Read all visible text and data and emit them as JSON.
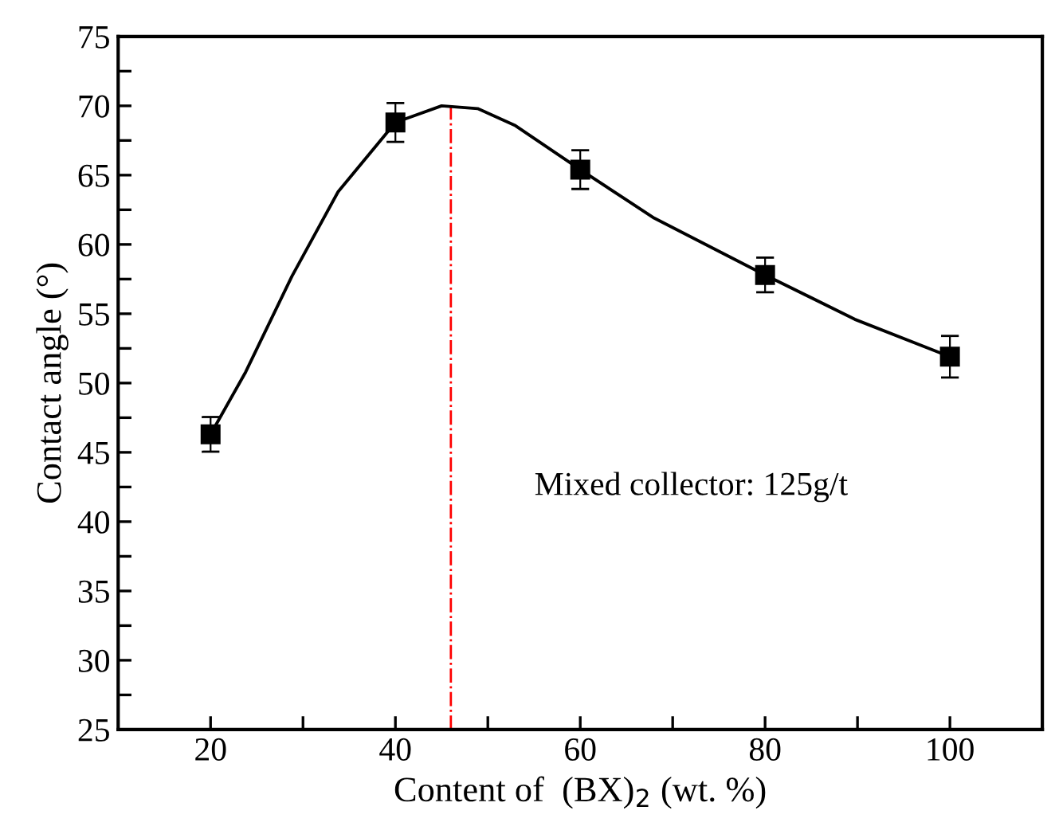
{
  "chart_data": {
    "type": "line",
    "xlabel": "Content of  (BX)$_{2}$ (wt. %)",
    "ylabel": "Contact angle (°)",
    "series": [
      {
        "color": "#000000",
        "marker": "none",
        "line_style": "solid",
        "x": [
          20,
          23.8,
          28.8,
          33.8,
          40,
          45.0,
          48.9,
          52.9,
          60,
          68.0,
          80,
          89.7,
          100
        ],
        "values": [
          46.3,
          50.8,
          57.7,
          63.8,
          68.8,
          70.0,
          69.8,
          68.6,
          65.4,
          61.9,
          57.8,
          54.6,
          51.9
        ]
      },
      {
        "type": "scatter",
        "color": "#000000",
        "marker": "square",
        "x": [
          20,
          40,
          60,
          80,
          100
        ],
        "values": [
          46.3,
          68.8,
          65.4,
          57.8,
          51.9
        ],
        "errors": [
          1.25,
          1.4,
          1.4,
          1.25,
          1.5
        ]
      }
    ],
    "xlim": [
      10,
      110
    ],
    "xticks": [
      20,
      {
        "value": 30,
        "label": null
      },
      40,
      {
        "value": 50,
        "label": null
      },
      60,
      {
        "value": 70,
        "label": null
      },
      80,
      {
        "value": 90,
        "label": null
      },
      100
    ],
    "ylim": [
      25,
      75
    ],
    "yticks": [
      25,
      {
        "value": 27.5,
        "label": null
      },
      30,
      {
        "value": 32.5,
        "label": null
      },
      35,
      {
        "value": 37.5,
        "label": null
      },
      40,
      {
        "value": 42.5,
        "label": null
      },
      45,
      {
        "value": 47.5,
        "label": null
      },
      50,
      {
        "value": 52.5,
        "label": null
      },
      55,
      {
        "value": 57.5,
        "label": null
      },
      60,
      {
        "value": 62.5,
        "label": null
      },
      65,
      {
        "value": 67.5,
        "label": null
      },
      70,
      {
        "value": 72.5,
        "label": null
      },
      75
    ],
    "ref_lines": [
      {
        "axis": "x",
        "value": 46,
        "color": "#ff0000",
        "line_style": "dashdot"
      }
    ],
    "annotations": [
      "Mixed collector: 125g/t"
    ],
    "grid": false,
    "legend": false
  }
}
